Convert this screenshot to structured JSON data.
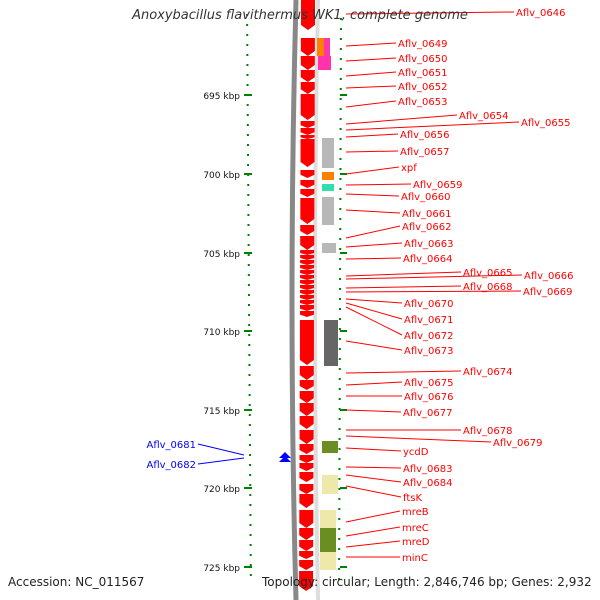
{
  "title": "Anoxybacillus flavithermus WK1, complete genome",
  "footer": {
    "accession": "Accession: NC_011567",
    "topology": "Topology: circular; Length: 2,846,746 bp; Genes: 2,932"
  },
  "colors": {
    "gene": "#ff0000",
    "gene_left": "#0000ff",
    "scale_tick": "#008000",
    "gray_light": "#b8b8b8",
    "gray_dark": "#666666",
    "orange": "#ff8000",
    "magenta": "#ff33aa",
    "teal": "#33ddaa",
    "olive": "#6b8e23",
    "pale_yellow": "#eee8aa"
  },
  "scale": {
    "labels": [
      "695 kbp",
      "700 kbp",
      "705 kbp",
      "710 kbp",
      "715 kbp",
      "720 kbp",
      "725 kbp"
    ]
  },
  "left_labels": [
    "Aflv_0681",
    "Aflv_0682"
  ],
  "right_labels": [
    "Aflv_0646",
    "Aflv_0649",
    "Aflv_0650",
    "Aflv_0651",
    "Aflv_0652",
    "Aflv_0653",
    "Aflv_0654",
    "Aflv_0655",
    "Aflv_0656",
    "Aflv_0657",
    "xpf",
    "Aflv_0659",
    "Aflv_0660",
    "Aflv_0661",
    "Aflv_0662",
    "Aflv_0663",
    "Aflv_0664",
    "Aflv_0665",
    "Aflv_0666",
    "Aflv_0668",
    "Aflv_0669",
    "Aflv_0670",
    "Aflv_0671",
    "Aflv_0672",
    "Aflv_0673",
    "Aflv_0674",
    "Aflv_0675",
    "Aflv_0676",
    "Aflv_0677",
    "Aflv_0678",
    "Aflv_0679",
    "ycdD",
    "Aflv_0683",
    "Aflv_0684",
    "ftsK",
    "mreB",
    "mreC",
    "mreD",
    "minC"
  ]
}
